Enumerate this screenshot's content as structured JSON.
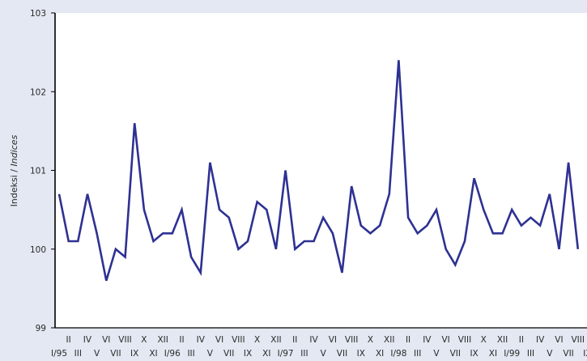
{
  "chart_data": {
    "type": "line",
    "ylabel_regular": "Indeksi / ",
    "ylabel_italic": "Indices",
    "ylim": [
      99,
      103
    ],
    "yticks": [
      "99",
      "100",
      "101",
      "102",
      "103"
    ],
    "grid": false,
    "line_color": "#2e3192",
    "plot_background": "#ffffff",
    "page_background": "#e3e8f2",
    "x_labels_row1": [
      "",
      "II",
      "",
      "IV",
      "",
      "VI",
      "",
      "VIII",
      "",
      "X",
      "",
      "XII",
      "",
      "II",
      "",
      "IV",
      "",
      "VI",
      "",
      "VIII",
      "",
      "X",
      "",
      "XII",
      "",
      "II",
      "",
      "IV",
      "",
      "VI",
      "",
      "VIII",
      "",
      "X",
      "",
      "XII",
      "",
      "II",
      "",
      "IV",
      "",
      "VI",
      "",
      "VIII",
      "",
      "X",
      "",
      "XII",
      "",
      "II",
      "",
      "IV",
      "",
      "VI",
      "",
      "VIII",
      "",
      "X",
      "",
      "XII",
      "",
      "II",
      "",
      "IV",
      "",
      "VI",
      "",
      "VIII"
    ],
    "x_labels_row2": [
      "I/95",
      "",
      "III",
      "",
      "V",
      "",
      "VII",
      "",
      "IX",
      "",
      "XI",
      "",
      "I/96",
      "",
      "III",
      "",
      "V",
      "",
      "VII",
      "",
      "IX",
      "",
      "XI",
      "",
      "I/97",
      "",
      "III",
      "",
      "V",
      "",
      "VII",
      "",
      "IX",
      "",
      "XI",
      "",
      "I/98",
      "",
      "III",
      "",
      "V",
      "",
      "VII",
      "",
      "IX",
      "",
      "XI",
      "",
      "I/99",
      "",
      "III",
      "",
      "V",
      "",
      "VII",
      "",
      "IX",
      "",
      "XI",
      "",
      "I/00",
      "",
      "III",
      "",
      "V",
      "",
      "VII",
      ""
    ],
    "series": [
      {
        "values": [
          100.7,
          100.1,
          100.1,
          100.7,
          100.2,
          99.6,
          100.0,
          99.9,
          101.6,
          100.5,
          100.1,
          100.2,
          100.2,
          100.5,
          99.9,
          99.7,
          101.1,
          100.5,
          100.4,
          100.0,
          100.1,
          100.6,
          100.5,
          100.0,
          101.0,
          100.0,
          100.1,
          100.1,
          100.4,
          100.2,
          99.7,
          100.8,
          100.3,
          100.2,
          100.3,
          100.7,
          102.4,
          100.4,
          100.2,
          100.3,
          100.5,
          100.0,
          99.8,
          100.1,
          100.9,
          100.5,
          100.2,
          100.2,
          100.5,
          100.3,
          100.4,
          100.3,
          100.7,
          100.0,
          101.1,
          100.0
        ]
      }
    ]
  }
}
